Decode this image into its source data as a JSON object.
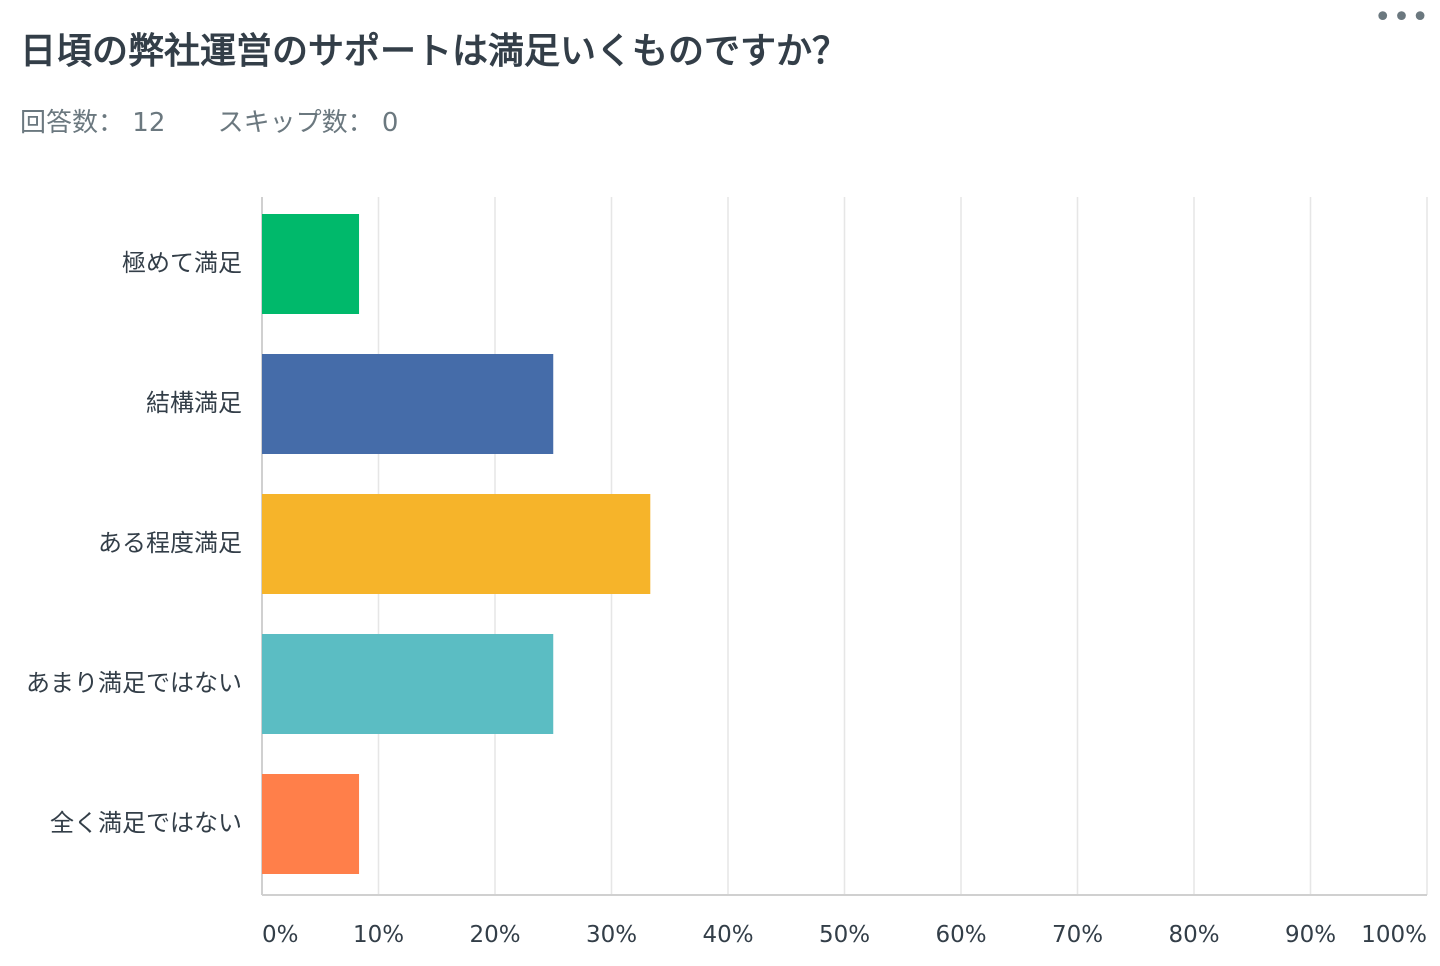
{
  "question": {
    "title": "日頃の弊社運営のサポートは満足いくものですか？",
    "menu_label": "•••"
  },
  "stats": {
    "answered_label": "回答数：",
    "answered_value": "12",
    "skipped_label": "スキップ数：",
    "skipped_value": "0"
  },
  "chart_data": {
    "type": "bar",
    "orientation": "horizontal",
    "categories": [
      "極めて満足",
      "結構満足",
      "ある程度満足",
      "あまり満足ではない",
      "全く満足ではない"
    ],
    "values": [
      8.33,
      25.0,
      33.33,
      25.0,
      8.33
    ],
    "colors": [
      "#00b96b",
      "#456ca9",
      "#f6b42a",
      "#5bbdc3",
      "#ff7f4a"
    ],
    "xlim": [
      0,
      100
    ],
    "x_ticks": [
      "0%",
      "10%",
      "20%",
      "30%",
      "40%",
      "50%",
      "60%",
      "70%",
      "80%",
      "90%",
      "100%"
    ],
    "grid": true,
    "legend": "none"
  }
}
